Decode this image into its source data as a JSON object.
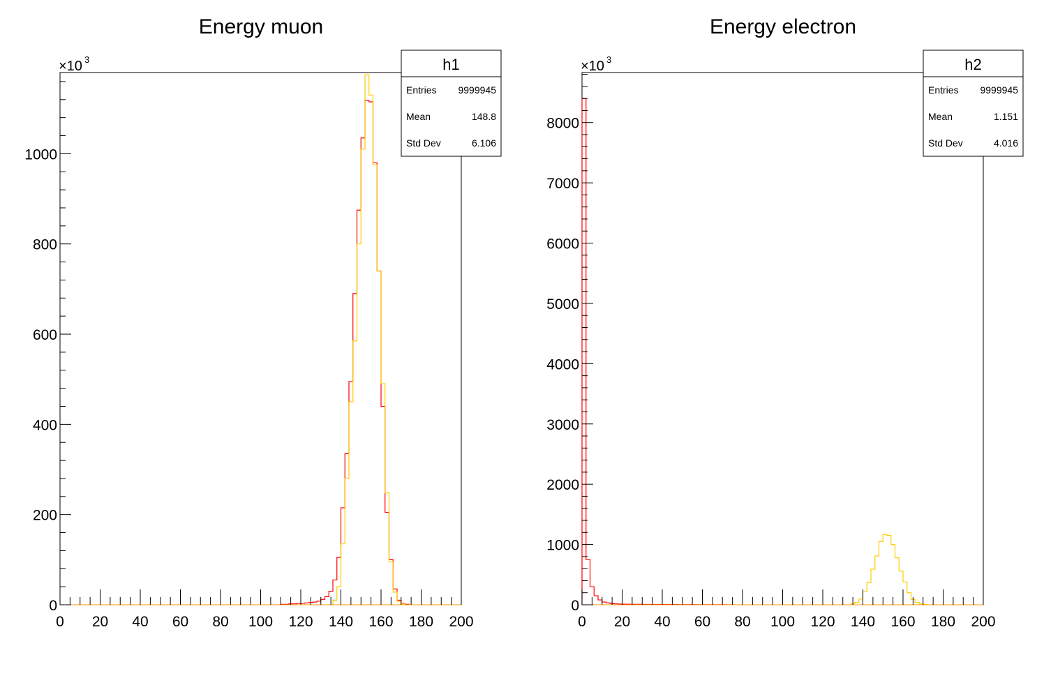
{
  "colors": {
    "series_red": "#ff0000",
    "series_yellow": "#ffcc00",
    "frame": "#000000",
    "background": "#ffffff"
  },
  "chart_data": [
    {
      "type": "histogram",
      "title": "Energy muon",
      "xlim": [
        0,
        200
      ],
      "ylim": [
        0,
        1180
      ],
      "y_multiplier_base": "×10",
      "y_multiplier_exp": "3",
      "xticks": [
        0,
        20,
        40,
        60,
        80,
        100,
        120,
        140,
        160,
        180,
        200
      ],
      "xtick_labels": [
        "0",
        "20",
        "40",
        "60",
        "80",
        "100",
        "120",
        "140",
        "160",
        "180",
        "200"
      ],
      "yticks": [
        0,
        200,
        400,
        600,
        800,
        1000
      ],
      "ytick_labels": [
        "0",
        "200",
        "400",
        "600",
        "800",
        "1000"
      ],
      "bin_width": 2,
      "grid": false,
      "stats_box": {
        "name": "h1",
        "placement": "top-right",
        "rows": [
          {
            "label": "Entries",
            "value": "9999945"
          },
          {
            "label": "Mean",
            "value": "148.8"
          },
          {
            "label": "Std Dev",
            "value": "6.106"
          }
        ]
      },
      "series": [
        {
          "color": "#ff0000",
          "bins": [
            [
              110,
              1
            ],
            [
              112,
              1
            ],
            [
              114,
              2
            ],
            [
              116,
              2
            ],
            [
              118,
              3
            ],
            [
              120,
              3
            ],
            [
              122,
              4
            ],
            [
              124,
              5
            ],
            [
              126,
              6
            ],
            [
              128,
              8
            ],
            [
              130,
              12
            ],
            [
              132,
              18
            ],
            [
              134,
              30
            ],
            [
              136,
              55
            ],
            [
              138,
              105
            ],
            [
              140,
              215
            ],
            [
              142,
              335
            ],
            [
              144,
              495
            ],
            [
              146,
              690
            ],
            [
              148,
              875
            ],
            [
              150,
              1035
            ],
            [
              152,
              1118
            ],
            [
              154,
              1115
            ],
            [
              156,
              980
            ],
            [
              158,
              740
            ],
            [
              160,
              440
            ],
            [
              162,
              205
            ],
            [
              164,
              100
            ],
            [
              166,
              35
            ],
            [
              168,
              10
            ],
            [
              170,
              3
            ],
            [
              172,
              1
            ]
          ]
        },
        {
          "color": "#ffcc00",
          "bins": [
            [
              136,
              10
            ],
            [
              138,
              40
            ],
            [
              140,
              135
            ],
            [
              142,
              280
            ],
            [
              144,
              450
            ],
            [
              146,
              585
            ],
            [
              148,
              800
            ],
            [
              150,
              1010
            ],
            [
              152,
              1175
            ],
            [
              154,
              1130
            ],
            [
              156,
              975
            ],
            [
              158,
              740
            ],
            [
              160,
              490
            ],
            [
              162,
              248
            ],
            [
              164,
              95
            ],
            [
              166,
              28
            ],
            [
              168,
              8
            ],
            [
              170,
              2
            ]
          ]
        }
      ]
    },
    {
      "type": "histogram",
      "title": "Energy electron",
      "xlim": [
        0,
        200
      ],
      "ylim": [
        0,
        8830
      ],
      "y_multiplier_base": "×10",
      "y_multiplier_exp": "3",
      "xticks": [
        0,
        20,
        40,
        60,
        80,
        100,
        120,
        140,
        160,
        180,
        200
      ],
      "xtick_labels": [
        "0",
        "20",
        "40",
        "60",
        "80",
        "100",
        "120",
        "140",
        "160",
        "180",
        "200"
      ],
      "yticks": [
        0,
        1000,
        2000,
        3000,
        4000,
        5000,
        6000,
        7000,
        8000
      ],
      "ytick_labels": [
        "0",
        "1000",
        "2000",
        "3000",
        "4000",
        "5000",
        "6000",
        "7000",
        "8000"
      ],
      "bin_width": 2,
      "grid": false,
      "stats_box": {
        "name": "h2",
        "placement": "top-right",
        "rows": [
          {
            "label": "Entries",
            "value": "9999945"
          },
          {
            "label": "Mean",
            "value": "1.151"
          },
          {
            "label": "Std Dev",
            "value": "4.016"
          }
        ]
      },
      "series": [
        {
          "color": "#ff0000",
          "bins": [
            [
              0,
              8400
            ],
            [
              2,
              750
            ],
            [
              4,
              300
            ],
            [
              6,
              150
            ],
            [
              8,
              80
            ],
            [
              10,
              45
            ],
            [
              12,
              30
            ],
            [
              14,
              20
            ],
            [
              16,
              15
            ],
            [
              18,
              12
            ],
            [
              20,
              10
            ],
            [
              22,
              9
            ],
            [
              24,
              8
            ],
            [
              26,
              7
            ],
            [
              28,
              7
            ],
            [
              30,
              6
            ],
            [
              32,
              6
            ],
            [
              34,
              5
            ],
            [
              36,
              5
            ],
            [
              38,
              5
            ],
            [
              40,
              4
            ],
            [
              42,
              4
            ],
            [
              44,
              4
            ],
            [
              46,
              4
            ],
            [
              48,
              3
            ],
            [
              50,
              3
            ],
            [
              52,
              3
            ],
            [
              54,
              3
            ],
            [
              56,
              3
            ],
            [
              58,
              2
            ],
            [
              60,
              2
            ],
            [
              62,
              2
            ],
            [
              64,
              2
            ],
            [
              66,
              2
            ],
            [
              68,
              2
            ],
            [
              70,
              2
            ],
            [
              72,
              1
            ],
            [
              74,
              1
            ]
          ]
        },
        {
          "color": "#ffcc00",
          "bins": [
            [
              134,
              20
            ],
            [
              136,
              40
            ],
            [
              138,
              95
            ],
            [
              140,
              215
            ],
            [
              142,
              370
            ],
            [
              144,
              590
            ],
            [
              146,
              810
            ],
            [
              148,
              1050
            ],
            [
              150,
              1165
            ],
            [
              152,
              1150
            ],
            [
              154,
              1000
            ],
            [
              156,
              780
            ],
            [
              158,
              560
            ],
            [
              160,
              380
            ],
            [
              162,
              200
            ],
            [
              164,
              90
            ],
            [
              166,
              40
            ],
            [
              168,
              15
            ],
            [
              170,
              5
            ]
          ]
        }
      ]
    }
  ]
}
